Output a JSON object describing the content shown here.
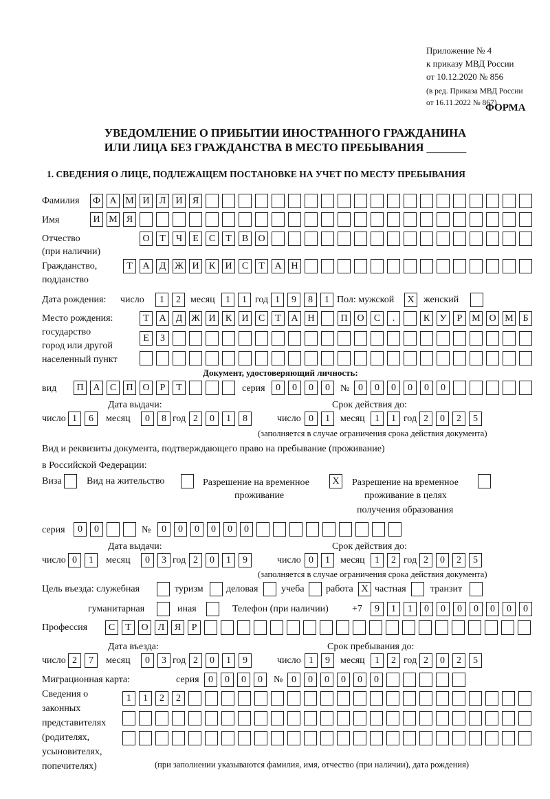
{
  "header": {
    "line1": "Приложение № 4",
    "line2": "к приказу МВД России",
    "line3": "от 10.12.2020 № 856",
    "line4": "(в ред. Приказа МВД России",
    "line5": "от 16.11.2022 № 867)",
    "forma": "ФОРМА"
  },
  "title": {
    "line1": "УВЕДОМЛЕНИЕ О ПРИБЫТИИ ИНОСТРАННОГО ГРАЖДАНИНА",
    "line2": "ИЛИ ЛИЦА БЕЗ ГРАЖДАНСТВА В МЕСТО ПРЕБЫВАНИЯ _______"
  },
  "section1": "1. СВЕДЕНИЯ О ЛИЦЕ, ПОДЛЕЖАЩЕМ ПОСТАНОВКЕ НА УЧЕТ ПО МЕСТУ ПРЕБЫВАНИЯ",
  "labels": {
    "surname": "Фамилия",
    "name": "Имя",
    "patronymic": "Отчество",
    "patronymic2": "(при наличии)",
    "citizenship": "Гражданство,",
    "citizenship2": "подданство",
    "birth_date": "Дата рождения:",
    "day": "число",
    "month": "месяц",
    "year": "год",
    "sex": "Пол: мужской",
    "female": "женский",
    "birthplace1": "Место рождения:",
    "birthplace2": "государство",
    "birthplace3": "город или другой",
    "birthplace4": "населенный пункт",
    "id_doc": "Документ, удостоверяющий личность:",
    "kind": "вид",
    "series": "серия",
    "number": "№",
    "issue_date": "Дата выдачи:",
    "valid_until": "Срок действия до:",
    "valid_note": "(заполняется в случае ограничения срока действия документа)",
    "right_doc1": "Вид и реквизиты документа, подтверждающего право на пребывание (проживание)",
    "right_doc2": "в Российской Федерации:",
    "visa": "Виза",
    "residence": "Вид на жительство",
    "temp_permit1": "Разрешение на временное",
    "temp_permit2": "проживание",
    "edu_permit1": "Разрешение на временное",
    "edu_permit2": "проживание в целях",
    "edu_permit3": "получения образования",
    "purpose": "Цель въезда: служебная",
    "tourism": "туризм",
    "business": "деловая",
    "study": "учеба",
    "work": "работа",
    "private": "частная",
    "transit": "транзит",
    "humanitarian": "гуманитарная",
    "other": "иная",
    "phone": "Телефон (при наличии)",
    "phone_prefix": "+7",
    "profession": "Профессия",
    "entry_date": "Дата въезда:",
    "stay_until": "Срок пребывания до:",
    "migration_card": "Миграционная карта:",
    "reps1": "Сведения о",
    "reps2": "законных",
    "reps3": "представителях",
    "reps4": "(родителях,",
    "reps5": "усыновителях,",
    "reps6": "попечителях)",
    "reps_note": "(при заполнении указываются фамилия, имя, отчество (при наличии), дата рождения)"
  },
  "fields": {
    "surname": "ФАМИЛИЯ",
    "name": "ИМЯ",
    "patronymic": "ОТЧЕСТВО",
    "citizenship": "ТАДЖИКИСТАН",
    "birth_day": "12",
    "birth_month": "11",
    "birth_year": "1981",
    "sex_male": "X",
    "sex_female": "",
    "birthplace_1": "ТАДЖИКИСТАН ПОС. КУРМОМБ",
    "birthplace_2": "ЕЗ",
    "birthplace_3": "",
    "id_kind": "ПАСПОРТ",
    "id_series": "0000",
    "id_number": "000000",
    "id_issue_day": "16",
    "id_issue_month": "08",
    "id_issue_year": "2018",
    "id_valid_day": "01",
    "id_valid_month": "11",
    "id_valid_year": "2025",
    "visa": "",
    "residence": "",
    "temp_permit": "X",
    "edu_permit": "",
    "permit_series": "00",
    "permit_number": "000000",
    "permit_issue_day": "01",
    "permit_issue_month": "03",
    "permit_issue_year": "2019",
    "permit_valid_day": "01",
    "permit_valid_month": "12",
    "permit_valid_year": "2025",
    "purpose_service": "",
    "purpose_tourism": "",
    "purpose_business": "",
    "purpose_study": "",
    "purpose_work": "X",
    "purpose_private": "",
    "purpose_transit": "",
    "purpose_humanitarian": "",
    "purpose_other": "",
    "phone": "9110000000",
    "profession": "СТОЛЯР",
    "entry_day": "27",
    "entry_month": "03",
    "entry_year": "2019",
    "stay_day": "19",
    "stay_month": "12",
    "stay_year": "2025",
    "mc_series": "0000",
    "mc_number": "000000",
    "reps_1": "1122",
    "reps_2": "",
    "reps_3": ""
  }
}
